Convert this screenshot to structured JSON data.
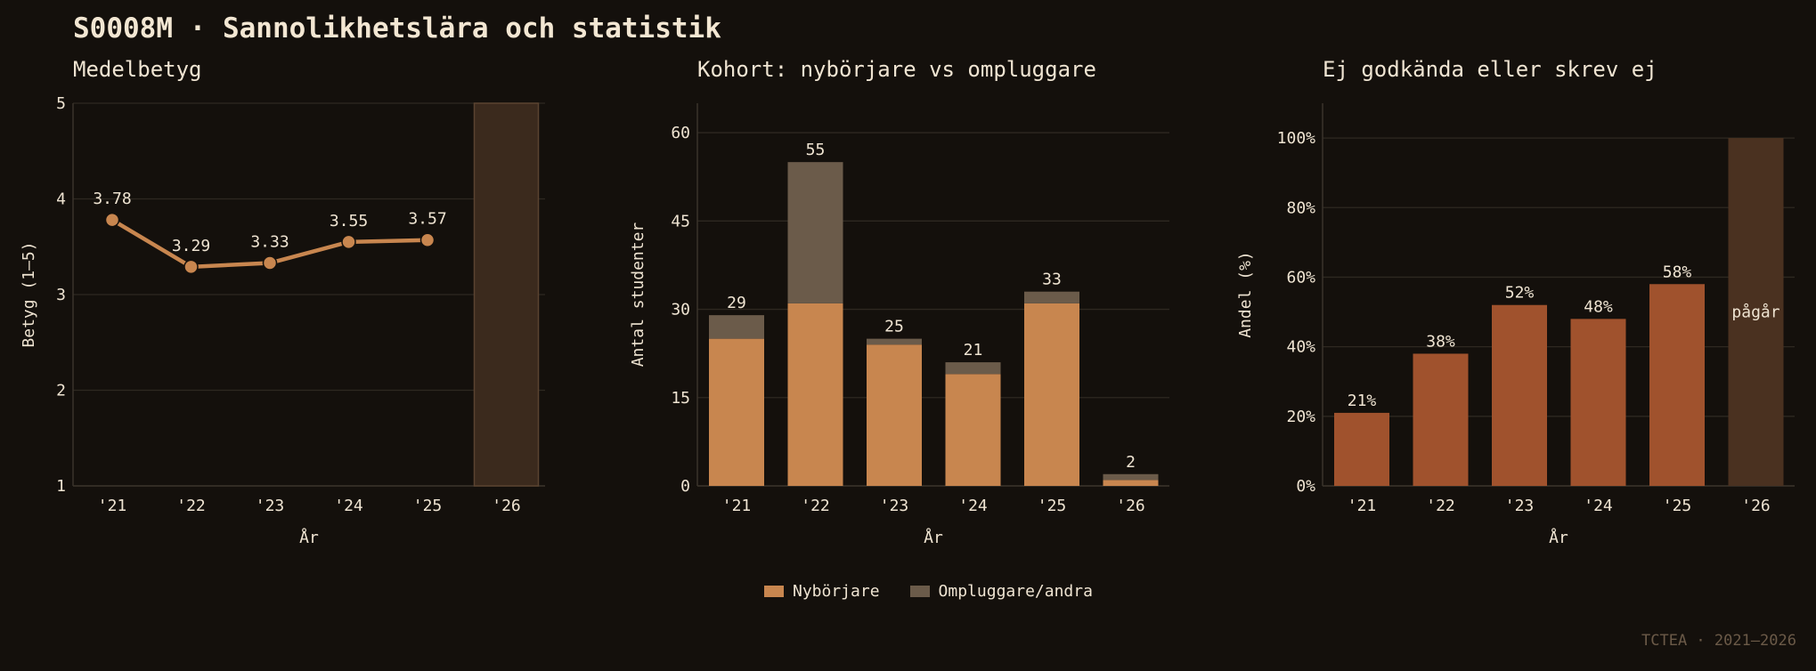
{
  "title": "S0008M · Sannolikhetslära och statistik",
  "footer": "TCTEA · 2021–2026",
  "colors": {
    "background": "#14100c",
    "grid": "#2e2821",
    "text": "#efe4d2",
    "line": "#c8864f",
    "nyborjare": "#c8864f",
    "ompluggare": "#6b5b4a",
    "fail": "#a0522d",
    "inprogress": "#3b2a1d",
    "inprogress_fail": "#4a3120"
  },
  "legend": {
    "nyborjare": "Nybörjare",
    "ompluggare": "Ompluggare/andra"
  },
  "chart_data": [
    {
      "type": "line",
      "title": "Medelbetyg",
      "xlabel": "År",
      "ylabel": "Betyg (1–5)",
      "categories": [
        "'21",
        "'22",
        "'23",
        "'24",
        "'25",
        "'26"
      ],
      "values": [
        3.78,
        3.29,
        3.33,
        3.55,
        3.57,
        null
      ],
      "labels": [
        "3.78",
        "3.29",
        "3.33",
        "3.55",
        "3.57",
        ""
      ],
      "ylim": [
        1,
        5
      ],
      "yticks": [
        "1",
        "2",
        "3",
        "4",
        "5"
      ],
      "highlight_category": "'26",
      "grid": true
    },
    {
      "type": "bar",
      "stacked": true,
      "title": "Kohort: nybörjare vs ompluggare",
      "xlabel": "År",
      "ylabel": "Antal studenter",
      "categories": [
        "'21",
        "'22",
        "'23",
        "'24",
        "'25",
        "'26"
      ],
      "series": [
        {
          "name": "Nybörjare",
          "values": [
            25,
            31,
            24,
            19,
            31,
            1
          ]
        },
        {
          "name": "Ompluggare/andra",
          "values": [
            4,
            24,
            1,
            2,
            2,
            1
          ]
        }
      ],
      "totals": [
        "29",
        "55",
        "25",
        "21",
        "33",
        "2"
      ],
      "ylim": [
        0,
        65
      ],
      "yticks": [
        "0",
        "15",
        "30",
        "45",
        "60"
      ],
      "legend_position": "bottom",
      "grid": true
    },
    {
      "type": "bar",
      "title": "Ej godkända eller skrev ej",
      "xlabel": "År",
      "ylabel": "Andel (%)",
      "categories": [
        "'21",
        "'22",
        "'23",
        "'24",
        "'25",
        "'26"
      ],
      "values": [
        21,
        38,
        52,
        48,
        58,
        100
      ],
      "labels": [
        "21%",
        "38%",
        "52%",
        "48%",
        "58%",
        "pågår"
      ],
      "in_progress": [
        false,
        false,
        false,
        false,
        false,
        true
      ],
      "ylim": [
        0,
        110
      ],
      "yticks": [
        "0%",
        "20%",
        "40%",
        "60%",
        "80%",
        "100%"
      ],
      "grid": true
    }
  ]
}
